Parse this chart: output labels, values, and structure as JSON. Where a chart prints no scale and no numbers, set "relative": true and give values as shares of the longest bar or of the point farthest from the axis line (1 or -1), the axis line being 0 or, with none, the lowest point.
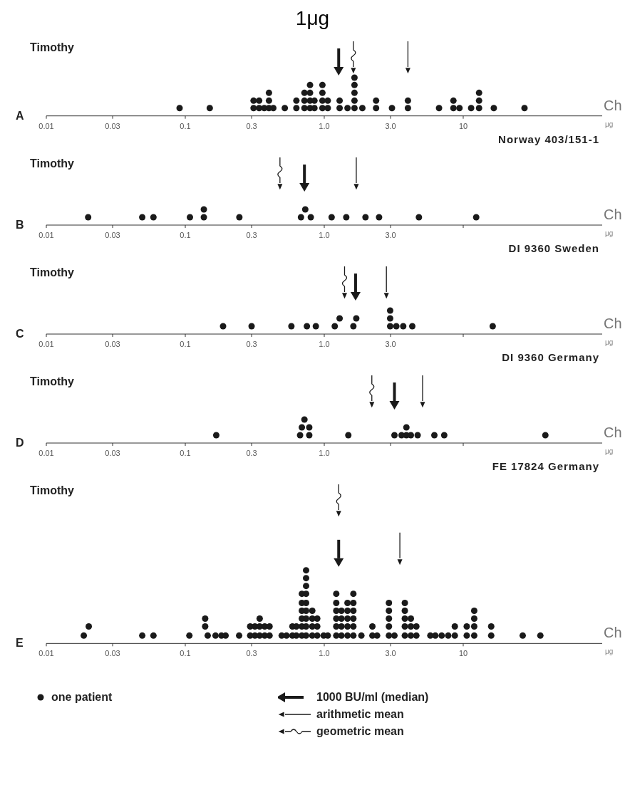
{
  "chart_data": [
    {
      "type": "other",
      "title": "1μg"
    },
    {
      "type": "scatter",
      "title": "Timothy",
      "subtitle": "Norway 403/151-1",
      "xlabel": "μg",
      "annotations": [
        "A",
        "Ch"
      ],
      "log": "x",
      "marker": "circle",
      "relative": true,
      "xlim": [
        0.01,
        100
      ],
      "xticks": [
        0.01,
        0.03,
        0.1,
        0.3,
        {
          "value": 1,
          "label": "1.0"
        },
        {
          "value": 3,
          "label": "3.0"
        },
        10
      ],
      "series": [
        {
          "color": "#1a1a1a",
          "x": [
            0.091,
            0.15,
            0.31,
            0.31,
            0.34,
            0.34,
            0.37,
            0.4,
            0.4,
            0.4,
            0.43,
            0.52,
            0.63,
            0.63,
            0.72,
            0.72,
            0.72,
            0.79,
            0.79,
            0.79,
            0.79,
            0.85,
            0.85,
            0.97,
            0.97,
            0.97,
            0.97,
            1.06,
            1.06,
            1.29,
            1.29,
            1.47,
            1.65,
            1.65,
            1.65,
            1.65,
            1.65,
            1.88,
            2.36,
            2.36,
            3.07,
            4.0,
            4.0,
            6.7,
            8.5,
            8.5,
            9.4,
            11.4,
            13,
            13,
            13,
            16.6,
            27.6
          ],
          "values": [
            0.17,
            0.17,
            0.17,
            0.33,
            0.17,
            0.33,
            0.17,
            0.17,
            0.33,
            0.5,
            0.17,
            0.17,
            0.17,
            0.33,
            0.17,
            0.33,
            0.5,
            0.17,
            0.33,
            0.5,
            0.67,
            0.17,
            0.33,
            0.17,
            0.33,
            0.5,
            0.67,
            0.17,
            0.33,
            0.17,
            0.33,
            0.17,
            0.17,
            0.33,
            0.5,
            0.67,
            0.83,
            0.17,
            0.17,
            0.33,
            0.17,
            0.17,
            0.33,
            0.17,
            0.17,
            0.33,
            0.17,
            0.17,
            0.17,
            0.33,
            0.5,
            0.17,
            0.17
          ]
        },
        {
          "color": "#1a1a1a",
          "marker": "triangle",
          "x": [
            1.27
          ],
          "values": [
            1
          ]
        },
        {
          "color": "#1a1a1a",
          "marker": "triangle",
          "x": [
            4.0
          ],
          "values": [
            1
          ]
        },
        {
          "color": "#1a1a1a",
          "marker": "triangle",
          "x": [
            1.62
          ],
          "values": [
            1
          ]
        }
      ]
    },
    {
      "type": "scatter",
      "title": "Timothy",
      "subtitle": "DI 9360 Sweden",
      "xlabel": "μg",
      "annotations": [
        "B",
        "Ch"
      ],
      "log": "x",
      "marker": "circle",
      "relative": true,
      "xlim": [
        0.01,
        100
      ],
      "xticks": [
        0.01,
        0.03,
        0.1,
        0.3,
        {
          "value": 1,
          "label": "1.0"
        },
        {
          "value": 3,
          "label": "3.0"
        },
        {
          "value": 10,
          "label": null
        }
      ],
      "series": [
        {
          "color": "#1a1a1a",
          "x": [
            0.02,
            0.049,
            0.059,
            0.108,
            0.136,
            0.136,
            0.245,
            0.68,
            0.73,
            0.8,
            1.13,
            1.44,
            1.98,
            2.48,
            4.8,
            12.4
          ],
          "values": [
            0.2,
            0.2,
            0.2,
            0.2,
            0.2,
            0.4,
            0.2,
            0.2,
            0.4,
            0.2,
            0.2,
            0.2,
            0.2,
            0.2,
            0.2,
            0.2
          ]
        },
        {
          "color": "#1a1a1a",
          "marker": "triangle",
          "x": [
            0.72
          ],
          "values": [
            1
          ]
        },
        {
          "color": "#1a1a1a",
          "marker": "triangle",
          "x": [
            1.7
          ],
          "values": [
            1
          ]
        },
        {
          "color": "#1a1a1a",
          "marker": "triangle",
          "x": [
            0.48
          ],
          "values": [
            1
          ]
        }
      ]
    },
    {
      "type": "scatter",
      "title": "Timothy",
      "subtitle": "DI 9360 Germany",
      "xlabel": "μg",
      "annotations": [
        "C",
        "Ch"
      ],
      "log": "x",
      "marker": "circle",
      "relative": true,
      "xlim": [
        0.01,
        100
      ],
      "xticks": [
        0.01,
        0.03,
        0.1,
        0.3,
        {
          "value": 1,
          "label": "1.0"
        },
        {
          "value": 3,
          "label": "3.0"
        },
        {
          "value": 10,
          "label": null
        }
      ],
      "series": [
        {
          "color": "#1a1a1a",
          "x": [
            0.187,
            0.3,
            0.58,
            0.75,
            0.87,
            1.19,
            1.29,
            1.62,
            1.7,
            2.98,
            2.98,
            2.98,
            3.3,
            3.7,
            4.3,
            16.3
          ],
          "values": [
            0.2,
            0.2,
            0.2,
            0.2,
            0.2,
            0.2,
            0.4,
            0.2,
            0.4,
            0.2,
            0.4,
            0.6,
            0.2,
            0.2,
            0.2,
            0.2
          ]
        },
        {
          "color": "#1a1a1a",
          "marker": "triangle",
          "x": [
            1.68
          ],
          "values": [
            1
          ]
        },
        {
          "color": "#1a1a1a",
          "marker": "triangle",
          "x": [
            2.8
          ],
          "values": [
            1
          ]
        },
        {
          "color": "#1a1a1a",
          "marker": "triangle",
          "x": [
            1.4
          ],
          "values": [
            1
          ]
        }
      ]
    },
    {
      "type": "scatter",
      "title": "Timothy",
      "subtitle": "FE 17824 Germany",
      "xlabel": "μg",
      "annotations": [
        "D",
        "Ch"
      ],
      "log": "x",
      "marker": "circle",
      "relative": true,
      "xlim": [
        0.01,
        100
      ],
      "xticks": [
        0.01,
        0.03,
        0.1,
        0.3,
        {
          "value": 1,
          "label": "1.0"
        },
        {
          "value": 3,
          "label": null
        },
        {
          "value": 10,
          "label": null
        }
      ],
      "series": [
        {
          "color": "#1a1a1a",
          "x": [
            0.167,
            0.67,
            0.69,
            0.72,
            0.78,
            0.78,
            1.49,
            3.2,
            3.6,
            3.9,
            3.9,
            4.2,
            4.7,
            6.2,
            7.3,
            39
          ],
          "values": [
            0.2,
            0.2,
            0.4,
            0.6,
            0.2,
            0.4,
            0.2,
            0.2,
            0.2,
            0.2,
            0.4,
            0.2,
            0.2,
            0.2,
            0.2,
            0.2
          ]
        },
        {
          "color": "#1a1a1a",
          "marker": "triangle",
          "x": [
            3.2
          ],
          "values": [
            1
          ]
        },
        {
          "color": "#1a1a1a",
          "marker": "triangle",
          "x": [
            5.1
          ],
          "values": [
            1
          ]
        },
        {
          "color": "#1a1a1a",
          "marker": "triangle",
          "x": [
            2.2
          ],
          "values": [
            1
          ]
        }
      ]
    },
    {
      "type": "scatter",
      "title": "Timothy",
      "xlabel": "μg",
      "annotations": [
        "E",
        "Ch"
      ],
      "log": "x",
      "marker": "circle",
      "relative": true,
      "legend": "bottom",
      "xlim": [
        0.01,
        100
      ],
      "xticks": [
        0.01,
        0.03,
        0.1,
        0.3,
        {
          "value": 1,
          "label": "1.0"
        },
        {
          "value": 3,
          "label": "3.0"
        },
        10
      ],
      "series": [
        {
          "name": "one patient",
          "color": "#1a1a1a",
          "x": [
            0.0186,
            0.0202,
            0.049,
            0.059,
            0.107,
            0.139,
            0.139,
            0.145,
            0.165,
            0.182,
            0.195,
            0.244,
            0.293,
            0.293,
            0.317,
            0.317,
            0.343,
            0.343,
            0.343,
            0.373,
            0.373,
            0.404,
            0.404,
            0.494,
            0.535,
            0.59,
            0.59,
            0.63,
            0.63,
            0.69,
            0.69,
            0.69,
            0.69,
            0.69,
            0.69,
            0.74,
            0.74,
            0.74,
            0.74,
            0.74,
            0.74,
            0.74,
            0.74,
            0.74,
            0.82,
            0.82,
            0.82,
            0.82,
            0.89,
            0.89,
            0.89,
            0.99,
            1.06,
            1.22,
            1.22,
            1.22,
            1.22,
            1.22,
            1.22,
            1.33,
            1.33,
            1.33,
            1.33,
            1.47,
            1.47,
            1.47,
            1.47,
            1.47,
            1.62,
            1.62,
            1.62,
            1.62,
            1.62,
            1.62,
            1.85,
            2.22,
            2.22,
            2.4,
            2.92,
            2.92,
            2.92,
            2.92,
            2.92,
            3.2,
            3.8,
            3.8,
            3.8,
            3.8,
            3.8,
            4.2,
            4.2,
            4.2,
            4.6,
            4.6,
            5.8,
            6.3,
            7,
            7.8,
            8.7,
            8.7,
            10.6,
            10.6,
            12,
            12,
            12,
            12,
            15.9,
            15.9,
            26.8,
            35.9
          ],
          "values": [
            0.06,
            0.13,
            0.06,
            0.06,
            0.06,
            0.13,
            0.19,
            0.06,
            0.06,
            0.06,
            0.06,
            0.06,
            0.06,
            0.13,
            0.06,
            0.13,
            0.06,
            0.13,
            0.19,
            0.06,
            0.13,
            0.06,
            0.13,
            0.06,
            0.06,
            0.06,
            0.13,
            0.06,
            0.13,
            0.06,
            0.13,
            0.19,
            0.25,
            0.31,
            0.38,
            0.06,
            0.13,
            0.19,
            0.25,
            0.31,
            0.38,
            0.44,
            0.5,
            0.56,
            0.06,
            0.13,
            0.19,
            0.25,
            0.06,
            0.13,
            0.19,
            0.06,
            0.06,
            0.06,
            0.13,
            0.19,
            0.25,
            0.31,
            0.38,
            0.06,
            0.13,
            0.19,
            0.25,
            0.06,
            0.13,
            0.19,
            0.25,
            0.31,
            0.06,
            0.13,
            0.19,
            0.25,
            0.31,
            0.38,
            0.06,
            0.06,
            0.13,
            0.06,
            0.06,
            0.13,
            0.19,
            0.25,
            0.31,
            0.06,
            0.06,
            0.13,
            0.19,
            0.25,
            0.31,
            0.06,
            0.13,
            0.19,
            0.06,
            0.13,
            0.06,
            0.06,
            0.06,
            0.06,
            0.06,
            0.13,
            0.06,
            0.13,
            0.06,
            0.13,
            0.19,
            0.25,
            0.06,
            0.13,
            0.06,
            0.06
          ]
        },
        {
          "name": "1000 BU/ml (median)",
          "color": "#1a1a1a",
          "marker": "triangle",
          "x": [
            1.27
          ],
          "values": [
            0.63
          ]
        },
        {
          "name": "arithmetic mean",
          "color": "#1a1a1a",
          "marker": "triangle",
          "x": [
            3.5
          ],
          "values": [
            0.63
          ]
        },
        {
          "name": "geometric mean",
          "color": "#1a1a1a",
          "marker": "triangle",
          "x": [
            1.27
          ],
          "values": [
            1
          ]
        }
      ]
    }
  ]
}
